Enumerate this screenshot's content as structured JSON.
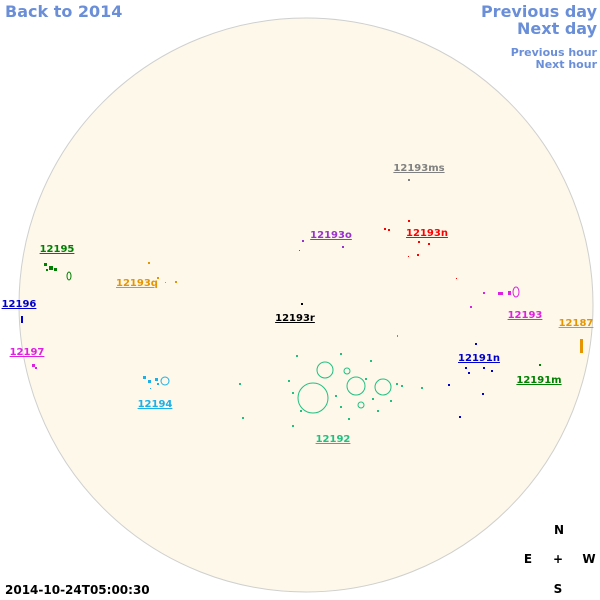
{
  "nav": {
    "back": "Back to 2014",
    "prev_day": "Previous day",
    "next_day": "Next day",
    "prev_hour": "Previous hour",
    "next_hour": "Next hour"
  },
  "regions": [
    {
      "label": "12193ms",
      "color": "#808080"
    },
    {
      "label": "12195",
      "color": "#008000"
    },
    {
      "label": "12193o",
      "color": "#9932cc"
    },
    {
      "label": "12193n",
      "color": "#ff0000"
    },
    {
      "label": "12193q",
      "color": "#e69500"
    },
    {
      "label": "12196",
      "color": "#0000cd"
    },
    {
      "label": "12193r",
      "color": "#000000"
    },
    {
      "label": "12193",
      "color": "#e020e0"
    },
    {
      "label": "12187",
      "color": "#e69500"
    },
    {
      "label": "12197",
      "color": "#e020e0"
    },
    {
      "label": "12191n",
      "color": "#0000cd"
    },
    {
      "label": "12191m",
      "color": "#008000"
    },
    {
      "label": "12194",
      "color": "#1ab0e8"
    },
    {
      "label": "12192",
      "color": "#20c080"
    }
  ],
  "timestamp": "2014-10-24T05:00:30",
  "compass": {
    "north": "N",
    "east": "E",
    "center": "+",
    "west": "W",
    "south": "S"
  }
}
